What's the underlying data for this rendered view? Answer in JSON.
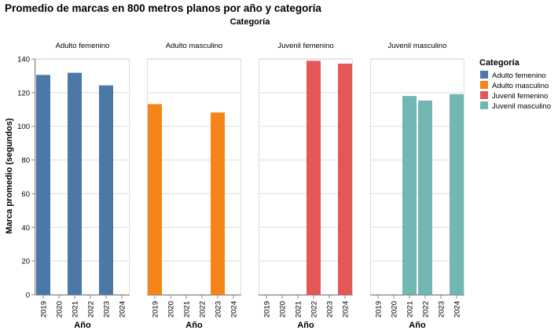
{
  "chart_data": {
    "type": "bar",
    "title": "Promedio de marcas en 800 metros planos por año y categoría",
    "facet_header": "Categoría",
    "xlabel": "Año",
    "ylabel": "Marca promedio (segundos)",
    "ylim": [
      0,
      140
    ],
    "yticks": [
      0,
      20,
      40,
      60,
      80,
      100,
      120,
      140
    ],
    "categories": [
      "2019",
      "2020",
      "2021",
      "2022",
      "2023",
      "2024"
    ],
    "grid": true,
    "legend": {
      "title": "Categoría",
      "placement": "right",
      "entries": [
        "Adulto femenino",
        "Adulto masculino",
        "Juvenil femenino",
        "Juvenil masculino"
      ]
    },
    "series": [
      {
        "name": "Adulto femenino",
        "color": "#4c78a8",
        "values": [
          130.5,
          null,
          131.8,
          null,
          124.3,
          null
        ]
      },
      {
        "name": "Adulto masculino",
        "color": "#f58518",
        "values": [
          113.2,
          null,
          null,
          null,
          108.2,
          null
        ]
      },
      {
        "name": "Juvenil femenino",
        "color": "#e45756",
        "values": [
          null,
          null,
          null,
          138.9,
          null,
          137.2
        ]
      },
      {
        "name": "Juvenil masculino",
        "color": "#72b7b2",
        "values": [
          null,
          null,
          118.0,
          115.3,
          null,
          119.1
        ]
      }
    ]
  }
}
